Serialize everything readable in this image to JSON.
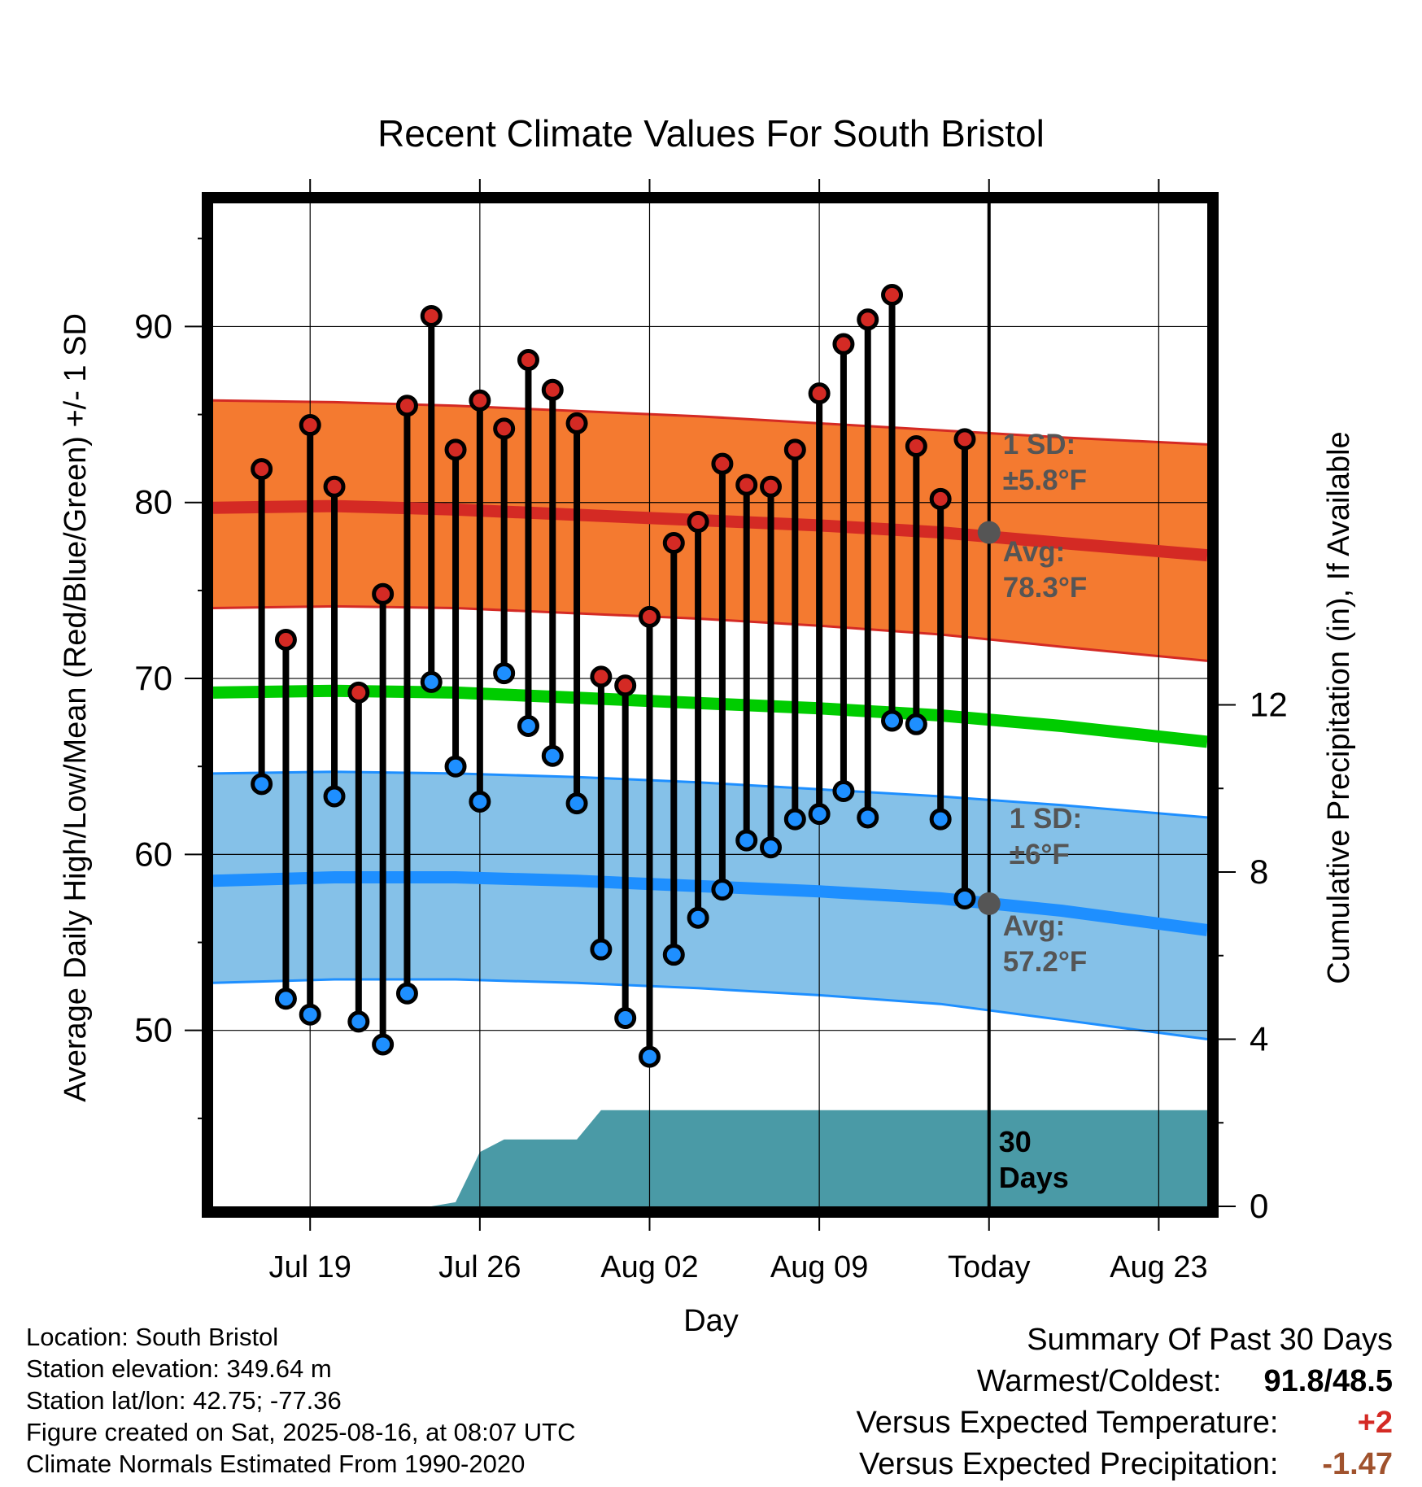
{
  "chart_data": {
    "type": "line",
    "title": "Recent Climate Values For South Bristol",
    "xlabel": "Day",
    "ylabel": "Average Daily High/Low/Mean (Red/Blue/Green) +/- 1 SD",
    "y2label": "Cumulative Precipitation (in), If Available",
    "ylim": [
      40,
      97
    ],
    "y2lim": [
      0,
      24
    ],
    "yticks": [
      50,
      60,
      70,
      80,
      90
    ],
    "y2ticks": [
      0,
      4,
      8,
      12
    ],
    "xlim": [
      "2025-07-15",
      "2025-08-25"
    ],
    "xticks": [
      {
        "date": "2025-07-19",
        "label": "Jul 19"
      },
      {
        "date": "2025-07-26",
        "label": "Jul 26"
      },
      {
        "date": "2025-08-02",
        "label": "Aug 02"
      },
      {
        "date": "2025-08-09",
        "label": "Aug 09"
      },
      {
        "date": "2025-08-16",
        "label": "Today"
      },
      {
        "date": "2025-08-23",
        "label": "Aug 23"
      }
    ],
    "today": "2025-08-16",
    "grid": true,
    "daily": [
      {
        "date": "2025-07-17",
        "high": 81.9,
        "low": 64.0
      },
      {
        "date": "2025-07-18",
        "high": 72.2,
        "low": 51.8
      },
      {
        "date": "2025-07-19",
        "high": 84.4,
        "low": 50.9
      },
      {
        "date": "2025-07-20",
        "high": 80.9,
        "low": 63.3
      },
      {
        "date": "2025-07-21",
        "high": 69.2,
        "low": 50.5
      },
      {
        "date": "2025-07-22",
        "high": 74.8,
        "low": 49.2
      },
      {
        "date": "2025-07-23",
        "high": 85.5,
        "low": 52.1
      },
      {
        "date": "2025-07-24",
        "high": 90.6,
        "low": 69.8
      },
      {
        "date": "2025-07-25",
        "high": 83.0,
        "low": 65.0
      },
      {
        "date": "2025-07-26",
        "high": 85.8,
        "low": 63.0
      },
      {
        "date": "2025-07-27",
        "high": 84.2,
        "low": 70.3
      },
      {
        "date": "2025-07-28",
        "high": 88.1,
        "low": 67.3
      },
      {
        "date": "2025-07-29",
        "high": 86.4,
        "low": 65.6
      },
      {
        "date": "2025-07-30",
        "high": 84.5,
        "low": 62.9
      },
      {
        "date": "2025-07-31",
        "high": 70.1,
        "low": 54.6
      },
      {
        "date": "2025-08-01",
        "high": 69.6,
        "low": 50.7
      },
      {
        "date": "2025-08-02",
        "high": 73.5,
        "low": 48.5
      },
      {
        "date": "2025-08-03",
        "high": 77.7,
        "low": 54.3
      },
      {
        "date": "2025-08-04",
        "high": 78.9,
        "low": 56.4
      },
      {
        "date": "2025-08-05",
        "high": 82.2,
        "low": 58.0
      },
      {
        "date": "2025-08-06",
        "high": 81.0,
        "low": 60.8
      },
      {
        "date": "2025-08-07",
        "high": 80.9,
        "low": 60.4
      },
      {
        "date": "2025-08-08",
        "high": 83.0,
        "low": 62.0
      },
      {
        "date": "2025-08-09",
        "high": 86.2,
        "low": 62.3
      },
      {
        "date": "2025-08-10",
        "high": 89.0,
        "low": 63.6
      },
      {
        "date": "2025-08-11",
        "high": 90.4,
        "low": 62.1
      },
      {
        "date": "2025-08-12",
        "high": 91.8,
        "low": 67.6
      },
      {
        "date": "2025-08-13",
        "high": 83.2,
        "low": 67.4
      },
      {
        "date": "2025-08-14",
        "high": 80.2,
        "low": 62.0
      },
      {
        "date": "2025-08-15",
        "high": 83.6,
        "low": 57.5
      }
    ],
    "normals": {
      "dates": [
        "2025-07-15",
        "2025-07-20",
        "2025-07-25",
        "2025-07-30",
        "2025-08-04",
        "2025-08-09",
        "2025-08-14",
        "2025-08-19",
        "2025-08-25"
      ],
      "high_avg": [
        79.7,
        79.8,
        79.6,
        79.3,
        79.0,
        78.7,
        78.3,
        77.7,
        77.0
      ],
      "high_upper": [
        85.8,
        85.7,
        85.5,
        85.2,
        84.9,
        84.5,
        84.1,
        83.7,
        83.3
      ],
      "high_lower": [
        74.0,
        74.1,
        74.0,
        73.7,
        73.4,
        73.0,
        72.5,
        71.8,
        71.0
      ],
      "mean_avg": [
        69.2,
        69.3,
        69.2,
        68.9,
        68.6,
        68.3,
        67.9,
        67.3,
        66.4
      ],
      "low_avg": [
        58.5,
        58.7,
        58.7,
        58.5,
        58.2,
        57.9,
        57.5,
        56.8,
        55.7
      ],
      "low_upper": [
        64.6,
        64.7,
        64.6,
        64.4,
        64.1,
        63.7,
        63.3,
        62.8,
        62.1
      ],
      "low_lower": [
        52.7,
        52.9,
        52.9,
        52.7,
        52.4,
        52.0,
        51.5,
        50.6,
        49.5
      ],
      "colors": {
        "high_band": "#f47a30",
        "high_line": "#d42a24",
        "mean_line": "#00cc00",
        "low_band": "#85c1e8",
        "low_line": "#1e8fff"
      }
    },
    "precip": {
      "dates": [
        "2025-07-15",
        "2025-07-24",
        "2025-07-25",
        "2025-07-26",
        "2025-07-27",
        "2025-07-30",
        "2025-07-31",
        "2025-08-25"
      ],
      "cumulative": [
        0,
        0,
        0.1,
        1.3,
        1.6,
        1.6,
        2.3,
        2.3
      ],
      "color": "#4a9aa6"
    },
    "annotations": {
      "high_sd_line1": "1 SD:",
      "high_sd_line2": "±5.8°F",
      "high_avg_line1": "Avg:",
      "high_avg_line2": "78.3°F",
      "low_sd_line1": "1 SD:",
      "low_sd_line2": "±6°F",
      "low_avg_line1": "Avg:",
      "low_avg_line2": "57.2°F",
      "period_line1": "30",
      "period_line2": "Days"
    }
  },
  "info": {
    "location": "Location: South Bristol",
    "elevation": "Station elevation: 349.64 m",
    "latlon": "Station lat/lon: 42.75; -77.36",
    "created": "Figure created on Sat, 2025-08-16, at 08:07 UTC",
    "normals": "Climate Normals Estimated From 1990-2020"
  },
  "summary": {
    "title": "Summary Of Past 30 Days",
    "warmest_label": "Warmest/Coldest:",
    "warmest_value": "91.8/48.5",
    "temp_label": "Versus Expected Temperature:",
    "temp_value": "+2",
    "temp_color": "#d42a24",
    "precip_label": "Versus Expected Precipitation:",
    "precip_value": "-1.47",
    "precip_color": "#a0522d"
  }
}
